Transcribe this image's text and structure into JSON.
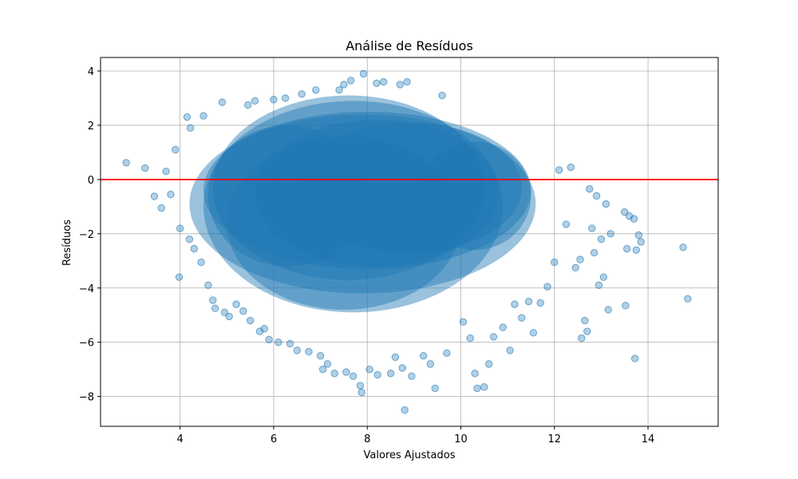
{
  "chart_data": {
    "type": "scatter",
    "title": "Análise de Resíduos",
    "xlabel": "Valores Ajustados",
    "ylabel": "Resíduos",
    "xlim": [
      2.3,
      15.5
    ],
    "ylim": [
      -9.1,
      4.5
    ],
    "xticks": [
      4,
      6,
      8,
      10,
      12,
      14
    ],
    "yticks": [
      -8,
      -6,
      -4,
      -2,
      0,
      2,
      4
    ],
    "grid": true,
    "reference_line": {
      "y": 0,
      "color": "#ff0000"
    },
    "point_color": "#1f77b4",
    "point_alpha": 0.3,
    "series": [
      {
        "points": [
          [
            2.85,
            0.62
          ],
          [
            3.25,
            0.42
          ],
          [
            3.45,
            -0.62
          ],
          [
            3.6,
            -1.05
          ],
          [
            3.7,
            0.3
          ],
          [
            3.8,
            -0.55
          ],
          [
            3.9,
            1.1
          ],
          [
            3.98,
            -3.6
          ],
          [
            4.0,
            -1.8
          ],
          [
            4.15,
            2.3
          ],
          [
            4.2,
            -2.2
          ],
          [
            4.22,
            1.9
          ],
          [
            4.3,
            -2.55
          ],
          [
            4.45,
            -3.05
          ],
          [
            4.5,
            2.35
          ],
          [
            4.6,
            -3.9
          ],
          [
            4.7,
            -4.45
          ],
          [
            4.75,
            -4.75
          ],
          [
            4.9,
            2.85
          ],
          [
            4.95,
            -4.9
          ],
          [
            5.05,
            -5.05
          ],
          [
            5.2,
            -4.6
          ],
          [
            5.35,
            -4.85
          ],
          [
            5.45,
            2.75
          ],
          [
            5.5,
            -5.2
          ],
          [
            5.6,
            2.9
          ],
          [
            5.7,
            -5.6
          ],
          [
            5.8,
            -5.5
          ],
          [
            5.9,
            -5.9
          ],
          [
            6.0,
            2.95
          ],
          [
            6.1,
            -6.0
          ],
          [
            6.25,
            3.0
          ],
          [
            6.35,
            -6.05
          ],
          [
            6.5,
            -6.3
          ],
          [
            6.6,
            3.15
          ],
          [
            6.75,
            -6.35
          ],
          [
            6.9,
            3.3
          ],
          [
            7.0,
            -6.5
          ],
          [
            7.05,
            -7.0
          ],
          [
            7.15,
            -6.8
          ],
          [
            7.3,
            -7.15
          ],
          [
            7.4,
            3.3
          ],
          [
            7.5,
            3.5
          ],
          [
            7.55,
            -7.1
          ],
          [
            7.65,
            3.65
          ],
          [
            7.7,
            -7.25
          ],
          [
            7.85,
            -7.6
          ],
          [
            7.88,
            -7.85
          ],
          [
            7.92,
            3.9
          ],
          [
            8.05,
            -7.0
          ],
          [
            8.2,
            3.55
          ],
          [
            8.22,
            -7.2
          ],
          [
            8.35,
            3.6
          ],
          [
            8.5,
            -7.15
          ],
          [
            8.6,
            -6.55
          ],
          [
            8.7,
            3.5
          ],
          [
            8.75,
            -6.95
          ],
          [
            8.8,
            -8.5
          ],
          [
            8.85,
            3.6
          ],
          [
            8.95,
            -7.25
          ],
          [
            9.2,
            -6.5
          ],
          [
            9.35,
            -6.8
          ],
          [
            9.45,
            -7.7
          ],
          [
            9.6,
            3.1
          ],
          [
            9.7,
            -6.4
          ],
          [
            10.05,
            -5.25
          ],
          [
            10.2,
            -5.85
          ],
          [
            10.3,
            -7.15
          ],
          [
            10.35,
            -7.7
          ],
          [
            10.5,
            -7.65
          ],
          [
            10.6,
            -6.8
          ],
          [
            10.7,
            -5.8
          ],
          [
            10.9,
            -5.45
          ],
          [
            11.05,
            -6.3
          ],
          [
            11.15,
            -4.6
          ],
          [
            11.3,
            -5.1
          ],
          [
            11.45,
            -4.5
          ],
          [
            11.55,
            -5.65
          ],
          [
            11.7,
            -4.55
          ],
          [
            11.85,
            -3.95
          ],
          [
            12.0,
            -3.05
          ],
          [
            12.1,
            0.35
          ],
          [
            12.25,
            -1.65
          ],
          [
            12.35,
            0.45
          ],
          [
            12.45,
            -3.25
          ],
          [
            12.55,
            -2.95
          ],
          [
            12.58,
            -5.85
          ],
          [
            12.65,
            -5.2
          ],
          [
            12.7,
            -5.6
          ],
          [
            12.75,
            -0.35
          ],
          [
            12.8,
            -1.8
          ],
          [
            12.85,
            -2.7
          ],
          [
            12.9,
            -0.6
          ],
          [
            12.95,
            -3.9
          ],
          [
            13.0,
            -2.2
          ],
          [
            13.05,
            -3.6
          ],
          [
            13.1,
            -0.9
          ],
          [
            13.15,
            -4.8
          ],
          [
            13.2,
            -2.0
          ],
          [
            13.5,
            -1.2
          ],
          [
            13.52,
            -4.65
          ],
          [
            13.55,
            -2.55
          ],
          [
            13.6,
            -1.35
          ],
          [
            13.7,
            -1.45
          ],
          [
            13.72,
            -6.6
          ],
          [
            13.75,
            -2.6
          ],
          [
            13.8,
            -2.05
          ],
          [
            13.85,
            -2.3
          ],
          [
            14.75,
            -2.5
          ],
          [
            14.85,
            -4.4
          ]
        ]
      }
    ]
  }
}
